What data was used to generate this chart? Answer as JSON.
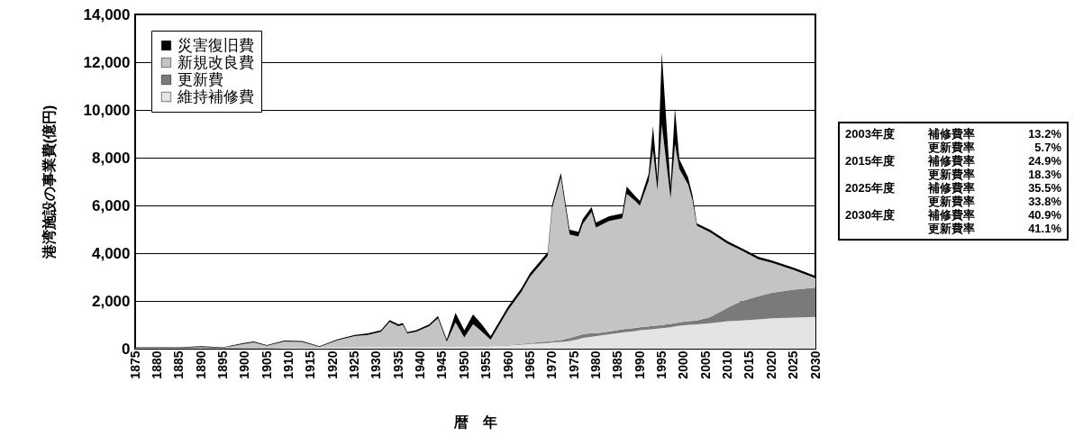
{
  "chart_data": {
    "type": "area",
    "stacked": true,
    "ylabel": "港湾施設の事業費(億円)",
    "xlabel": "暦　年",
    "x": [
      1875,
      1880,
      1885,
      1890,
      1895,
      1900,
      1902,
      1905,
      1909,
      1913,
      1917,
      1921,
      1925,
      1928,
      1931,
      1933,
      1935,
      1936,
      1937,
      1939,
      1942,
      1944,
      1946,
      1948,
      1950,
      1952,
      1954,
      1956,
      1960,
      1963,
      1965,
      1969,
      1970,
      1972,
      1974,
      1976,
      1977,
      1979,
      1980,
      1983,
      1986,
      1987,
      1989,
      1990,
      1992,
      1993,
      1994,
      1995,
      1997,
      1998,
      1999,
      2001,
      2002,
      2003,
      2006,
      2010,
      2013,
      2017,
      2020,
      2025,
      2030
    ],
    "series": [
      {
        "name": "維持補修費",
        "color": "#e4e4e4",
        "values": [
          20,
          20,
          20,
          30,
          20,
          30,
          30,
          30,
          40,
          40,
          40,
          50,
          50,
          60,
          60,
          60,
          60,
          60,
          60,
          60,
          70,
          70,
          70,
          80,
          80,
          80,
          90,
          100,
          130,
          170,
          200,
          240,
          260,
          280,
          320,
          400,
          450,
          500,
          530,
          600,
          680,
          700,
          740,
          770,
          800,
          820,
          840,
          860,
          900,
          930,
          960,
          1000,
          1010,
          1020,
          1070,
          1150,
          1180,
          1230,
          1270,
          1300,
          1330
        ]
      },
      {
        "name": "更新費",
        "color": "#7a7a7a",
        "values": [
          0,
          0,
          0,
          0,
          0,
          0,
          0,
          0,
          0,
          0,
          0,
          0,
          0,
          0,
          0,
          0,
          0,
          0,
          0,
          0,
          0,
          0,
          0,
          0,
          0,
          0,
          10,
          20,
          20,
          30,
          40,
          60,
          60,
          80,
          120,
          150,
          150,
          150,
          110,
          120,
          130,
          130,
          130,
          130,
          130,
          130,
          130,
          130,
          140,
          140,
          140,
          150,
          150,
          160,
          250,
          570,
          800,
          970,
          1070,
          1170,
          1230
        ]
      },
      {
        "name": "新規改良費",
        "color": "#c4c4c4",
        "values": [
          20,
          20,
          20,
          40,
          20,
          180,
          230,
          90,
          260,
          240,
          40,
          300,
          480,
          520,
          650,
          1060,
          880,
          940,
          580,
          650,
          870,
          1200,
          220,
          1020,
          390,
          950,
          620,
          260,
          1470,
          2180,
          2780,
          3590,
          5570,
          6800,
          4340,
          4150,
          4630,
          5080,
          4440,
          4630,
          4650,
          5660,
          5310,
          5090,
          6090,
          7370,
          5660,
          8410,
          5250,
          7510,
          6430,
          5720,
          5060,
          3970,
          3560,
          2680,
          2150,
          1550,
          1260,
          830,
          390
        ]
      },
      {
        "name": "災害復旧費",
        "color": "#000000",
        "values": [
          20,
          20,
          20,
          30,
          20,
          40,
          40,
          30,
          40,
          40,
          20,
          40,
          50,
          60,
          60,
          80,
          80,
          80,
          60,
          60,
          80,
          100,
          100,
          400,
          300,
          400,
          300,
          150,
          150,
          150,
          150,
          150,
          150,
          200,
          200,
          200,
          200,
          200,
          200,
          200,
          200,
          300,
          200,
          200,
          300,
          1000,
          500,
          3000,
          500,
          1500,
          400,
          300,
          200,
          100,
          100,
          100,
          100,
          100,
          100,
          100,
          100
        ]
      }
    ],
    "xlim": [
      1875,
      2030
    ],
    "xticks": [
      1875,
      1880,
      1885,
      1890,
      1895,
      1900,
      1905,
      1910,
      1915,
      1920,
      1925,
      1930,
      1935,
      1940,
      1945,
      1950,
      1955,
      1960,
      1965,
      1970,
      1975,
      1980,
      1985,
      1990,
      1995,
      2000,
      2005,
      2010,
      2015,
      2020,
      2025,
      2030
    ],
    "ylim": [
      0,
      14000
    ],
    "yticks": [
      0,
      {
        "value": 2000,
        "label": "2,000"
      },
      {
        "value": 4000,
        "label": "4,000"
      },
      {
        "value": 6000,
        "label": "6,000"
      },
      {
        "value": 8000,
        "label": "8,000"
      },
      {
        "value": 10000,
        "label": "10,000"
      },
      {
        "value": 12000,
        "label": "12,000"
      },
      {
        "value": 14000,
        "label": "14,000"
      }
    ],
    "grid": "y",
    "legend": "top left",
    "annotations": [
      "2003年度 補修費率 13.2%",
      "更新費率 5.7%",
      "2015年度 補修費率 24.9%",
      "更新費率 18.3%",
      "2025年度 補修費率 35.5%",
      "更新費率 33.8%",
      "2030年度 補修費率 40.9%",
      "更新費率 41.1%"
    ]
  }
}
